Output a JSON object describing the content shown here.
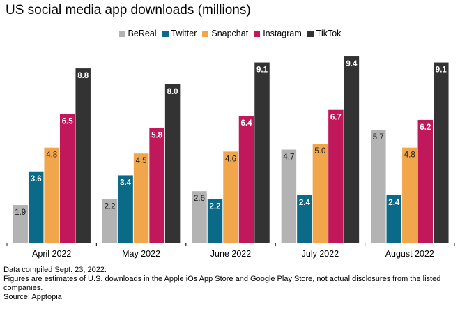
{
  "chart_data": {
    "type": "bar",
    "title": "US social media app downloads (millions)",
    "categories": [
      "April 2022",
      "May 2022",
      "June 2022",
      "July 2022",
      "August 2022"
    ],
    "series": [
      {
        "name": "BeReal",
        "color": "#b3b3b3",
        "values": [
          1.9,
          2.2,
          2.6,
          4.7,
          5.7
        ],
        "labels": [
          "1.9",
          "2.2",
          "2.6",
          "4.7",
          "5.7"
        ]
      },
      {
        "name": "Twitter",
        "color": "#0b6a87",
        "values": [
          3.6,
          3.4,
          2.2,
          2.4,
          2.4
        ],
        "labels": [
          "3.6",
          "3.4",
          "2.2",
          "2.4",
          "2.4"
        ]
      },
      {
        "name": "Snapchat",
        "color": "#f2a64b",
        "values": [
          4.8,
          4.5,
          4.6,
          5.0,
          4.8
        ],
        "labels": [
          "4.8",
          "4.5",
          "4.6",
          "5.0",
          "4.8"
        ]
      },
      {
        "name": "Instagram",
        "color": "#c0185b",
        "values": [
          6.5,
          5.8,
          6.4,
          6.7,
          6.2
        ],
        "labels": [
          "6.5",
          "5.8",
          "6.4",
          "6.7",
          "6.2"
        ]
      },
      {
        "name": "TikTok",
        "color": "#333333",
        "values": [
          8.8,
          8.0,
          9.1,
          9.4,
          9.1
        ],
        "labels": [
          "8.8",
          "8.0",
          "9.1",
          "9.4",
          "9.1"
        ]
      }
    ],
    "ylim": [
      0,
      10
    ],
    "grid": false,
    "legend_position": "top-center",
    "label_colors": {
      "BeReal": "#222222",
      "Twitter": "#ffffff",
      "Snapchat": "#222222",
      "Instagram": "#ffffff",
      "TikTok": "#ffffff"
    }
  },
  "notes": [
    "Data compiled Sept. 23, 2022.",
    "Figures are estimates of U.S. downloads in the Apple iOs App Store and Google Play Store, not actual disclosures from the listed companies.",
    "Source: Apptopia"
  ]
}
